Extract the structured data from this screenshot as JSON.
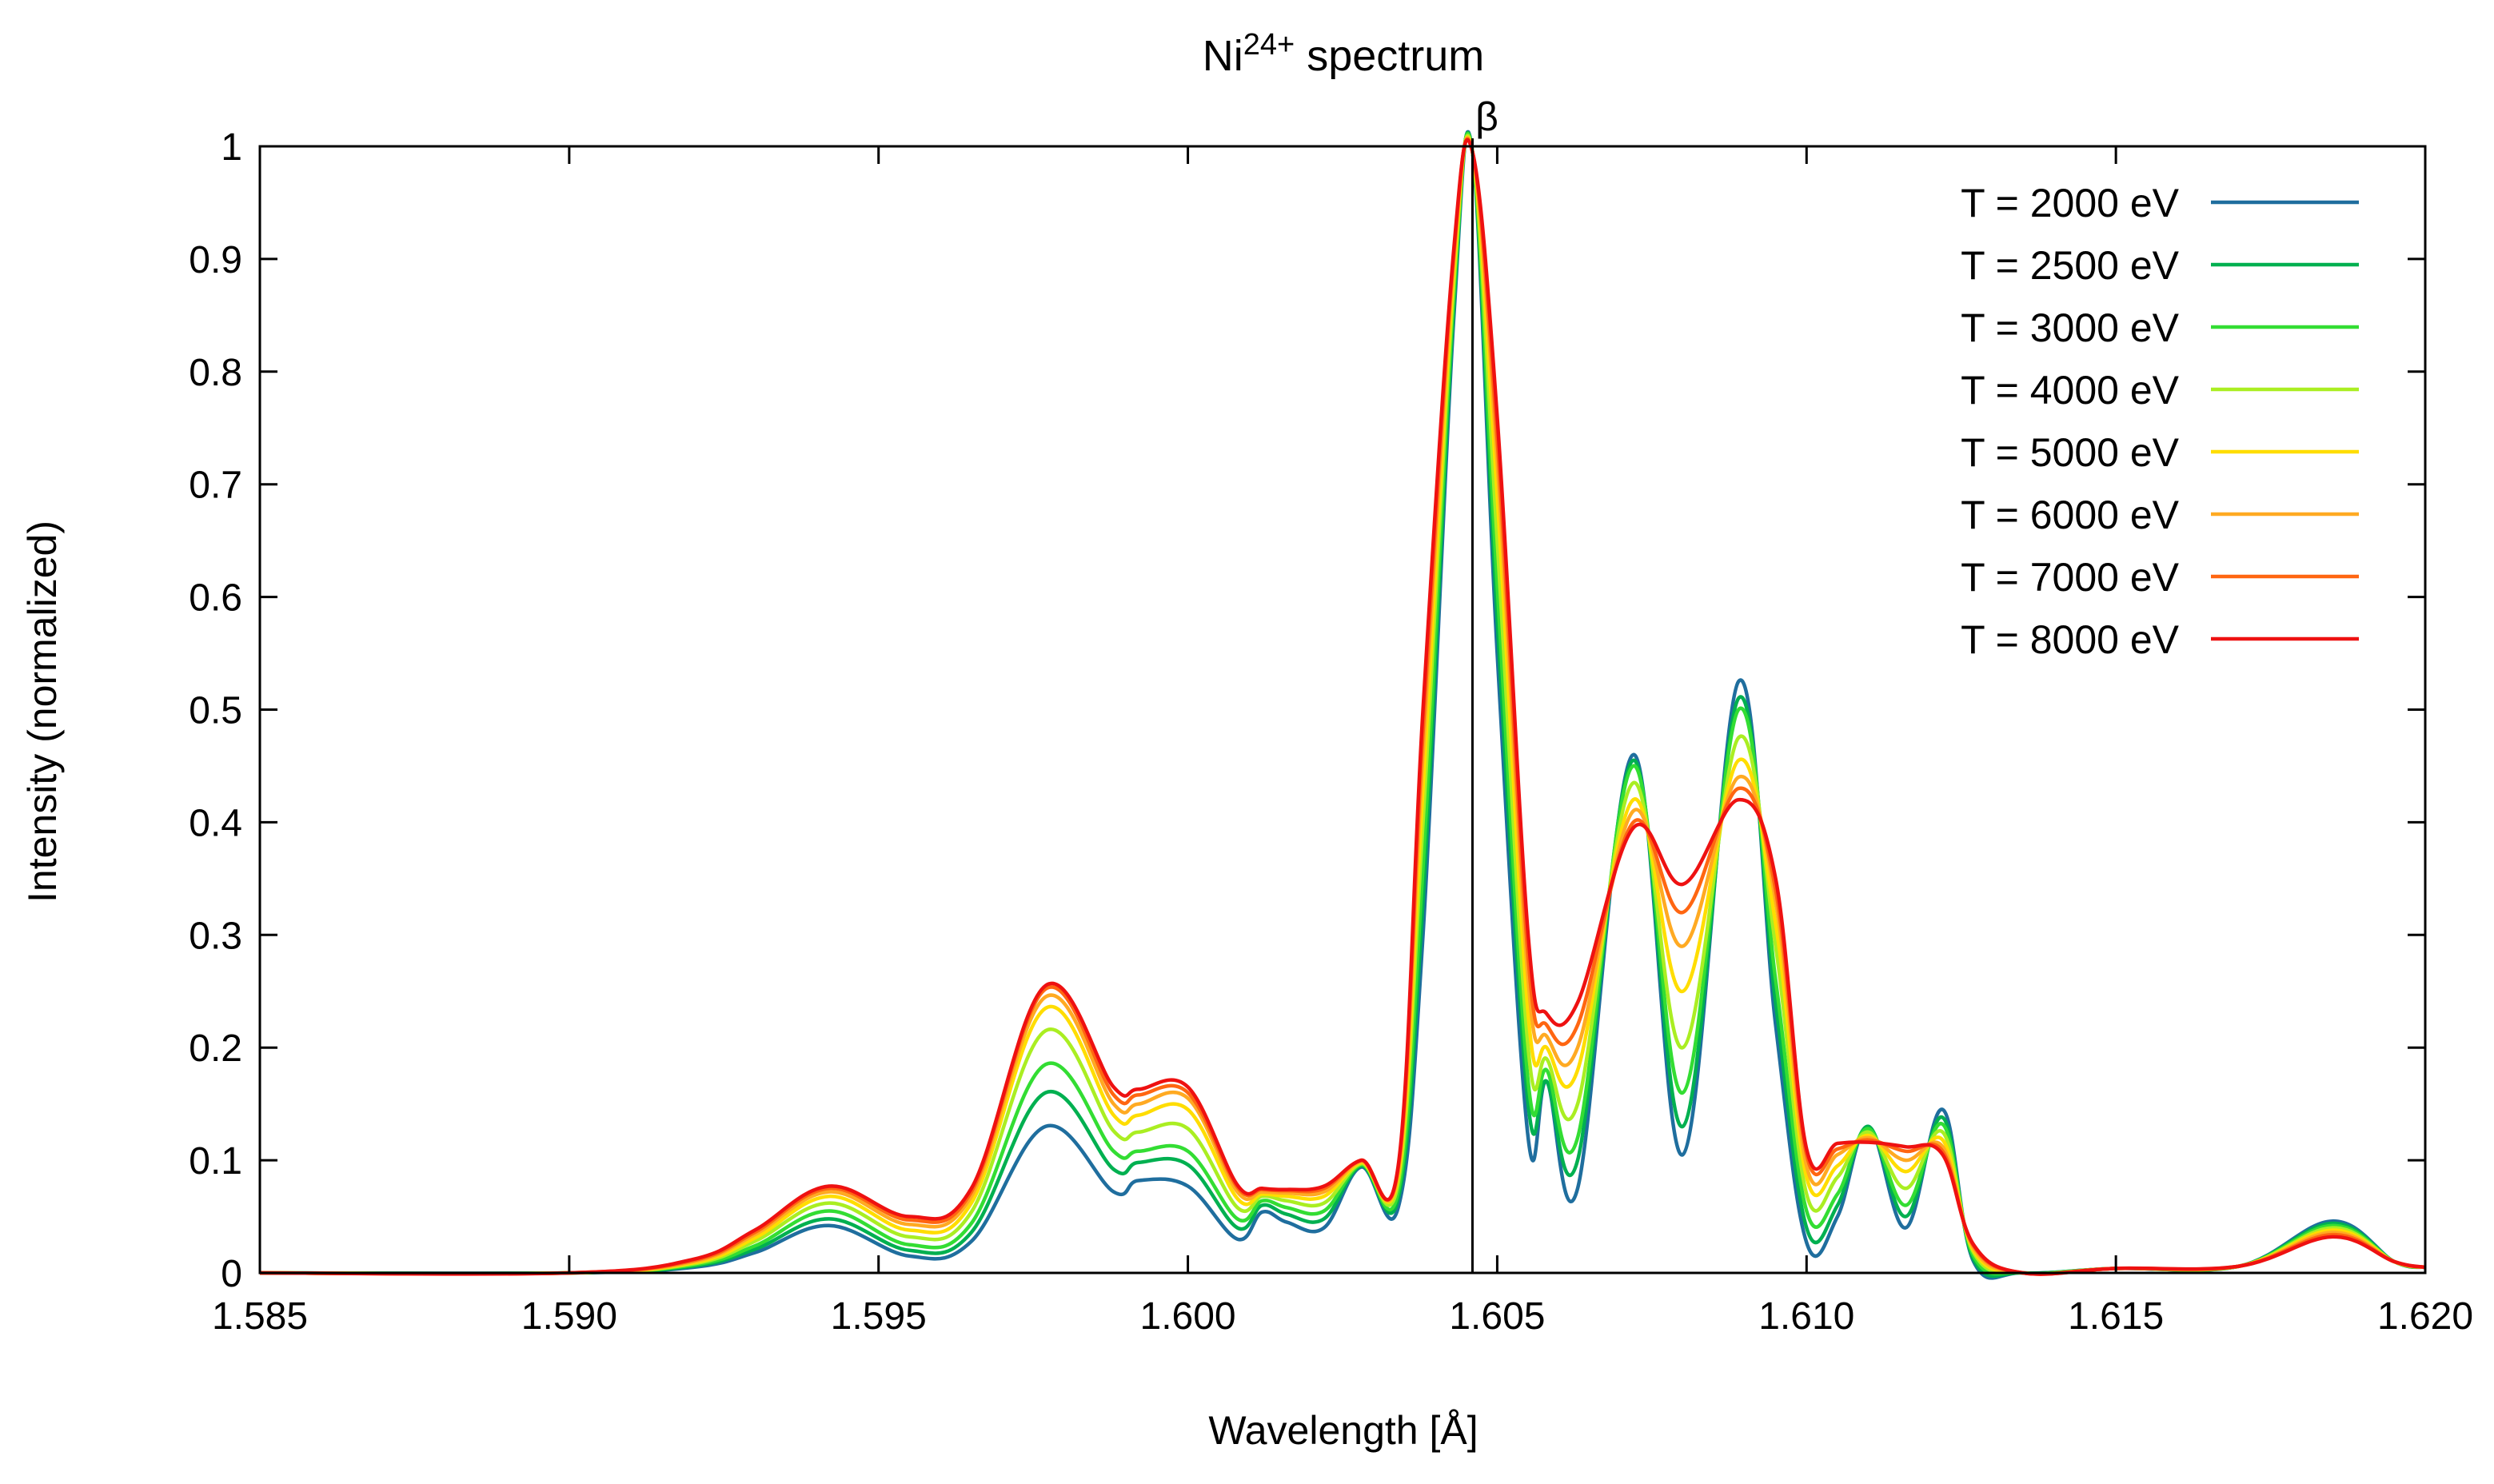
{
  "chart_data": {
    "type": "line",
    "title": {
      "prefix": "Ni",
      "superscript": "24+",
      "suffix": " spectrum"
    },
    "xlabel": "Wavelength [Å]",
    "ylabel": "Intensity (normalized)",
    "xlim": [
      1.585,
      1.62
    ],
    "ylim": [
      0,
      1
    ],
    "xticks": [
      1.585,
      1.59,
      1.595,
      1.6,
      1.605,
      1.61,
      1.615,
      1.62
    ],
    "xtick_labels": [
      "1.585",
      "1.590",
      "1.595",
      "1.600",
      "1.605",
      "1.610",
      "1.615",
      "1.620"
    ],
    "yticks": [
      0,
      0.1,
      0.2,
      0.3,
      0.4,
      0.5,
      0.6,
      0.7,
      0.8,
      0.9,
      1
    ],
    "ytick_labels": [
      "0",
      "0.1",
      "0.2",
      "0.3",
      "0.4",
      "0.5",
      "0.6",
      "0.7",
      "0.8",
      "0.9",
      "1"
    ],
    "grid": false,
    "legend_position": "top-right",
    "annotation": {
      "label": "β",
      "x": 1.6046
    },
    "series": [
      {
        "name": "T = 2000 eV",
        "color": "#1f6e9e",
        "x": [
          1.585,
          1.59,
          1.592,
          1.593,
          1.5942,
          1.5955,
          1.5965,
          1.5977,
          1.5988,
          1.5992,
          1.6,
          1.6008,
          1.6012,
          1.6016,
          1.6022,
          1.6028,
          1.6034,
          1.6038,
          1.6043,
          1.6046,
          1.605,
          1.6055,
          1.6058,
          1.6063,
          1.6072,
          1.608,
          1.6089,
          1.6095,
          1.61,
          1.6105,
          1.611,
          1.6116,
          1.6122,
          1.6127,
          1.6135,
          1.615,
          1.617,
          1.6185,
          1.6195,
          1.62
        ],
        "y": [
          0,
          0,
          0.005,
          0.018,
          0.042,
          0.015,
          0.028,
          0.13,
          0.072,
          0.082,
          0.077,
          0.03,
          0.054,
          0.045,
          0.04,
          0.094,
          0.058,
          0.3,
          0.85,
          0.995,
          0.55,
          0.12,
          0.17,
          0.075,
          0.46,
          0.105,
          0.525,
          0.22,
          0.027,
          0.05,
          0.13,
          0.04,
          0.145,
          0.01,
          0.0,
          0.004,
          0.006,
          0.046,
          0.01,
          0.005
        ]
      },
      {
        "name": "T = 2500 eV",
        "color": "#00b050",
        "x": [
          1.585,
          1.59,
          1.592,
          1.593,
          1.5942,
          1.5955,
          1.5965,
          1.5977,
          1.5988,
          1.5992,
          1.6,
          1.6008,
          1.6012,
          1.6016,
          1.6022,
          1.6028,
          1.6034,
          1.6038,
          1.6043,
          1.6046,
          1.605,
          1.6055,
          1.6058,
          1.6063,
          1.6072,
          1.608,
          1.6089,
          1.6095,
          1.61,
          1.6105,
          1.611,
          1.6116,
          1.6122,
          1.6127,
          1.6135,
          1.615,
          1.617,
          1.6185,
          1.6195,
          1.62
        ],
        "y": [
          0,
          0,
          0.006,
          0.021,
          0.048,
          0.02,
          0.036,
          0.16,
          0.092,
          0.098,
          0.096,
          0.04,
          0.06,
          0.052,
          0.048,
          0.095,
          0.066,
          0.33,
          0.86,
          0.995,
          0.58,
          0.15,
          0.17,
          0.1,
          0.455,
          0.13,
          0.51,
          0.24,
          0.04,
          0.06,
          0.13,
          0.05,
          0.138,
          0.012,
          0.0,
          0.004,
          0.006,
          0.044,
          0.01,
          0.005
        ]
      },
      {
        "name": "T = 3000 eV",
        "color": "#33dd33",
        "x": [
          1.585,
          1.59,
          1.592,
          1.593,
          1.5942,
          1.5955,
          1.5965,
          1.5977,
          1.5988,
          1.5992,
          1.6,
          1.6008,
          1.6012,
          1.6016,
          1.6022,
          1.6028,
          1.6034,
          1.6038,
          1.6043,
          1.6046,
          1.605,
          1.6055,
          1.6058,
          1.6063,
          1.6072,
          1.608,
          1.6089,
          1.6095,
          1.61,
          1.6105,
          1.611,
          1.6116,
          1.6122,
          1.6127,
          1.6135,
          1.615,
          1.617,
          1.6185,
          1.6195,
          1.62
        ],
        "y": [
          0,
          0,
          0.007,
          0.024,
          0.055,
          0.025,
          0.044,
          0.185,
          0.108,
          0.108,
          0.108,
          0.048,
          0.064,
          0.058,
          0.055,
          0.096,
          0.072,
          0.36,
          0.87,
          0.995,
          0.61,
          0.17,
          0.18,
          0.12,
          0.45,
          0.16,
          0.5,
          0.26,
          0.055,
          0.07,
          0.128,
          0.06,
          0.132,
          0.015,
          0.0,
          0.004,
          0.006,
          0.042,
          0.01,
          0.005
        ]
      },
      {
        "name": "T = 4000 eV",
        "color": "#aaee22",
        "x": [
          1.585,
          1.59,
          1.592,
          1.593,
          1.5942,
          1.5955,
          1.5965,
          1.5977,
          1.5988,
          1.5992,
          1.6,
          1.6008,
          1.6012,
          1.6016,
          1.6022,
          1.6028,
          1.6034,
          1.6038,
          1.6043,
          1.6046,
          1.605,
          1.6055,
          1.6058,
          1.6063,
          1.6072,
          1.608,
          1.6089,
          1.6095,
          1.61,
          1.6105,
          1.611,
          1.6116,
          1.6122,
          1.6127,
          1.6135,
          1.615,
          1.617,
          1.6185,
          1.6195,
          1.62
        ],
        "y": [
          0,
          0,
          0.008,
          0.028,
          0.062,
          0.032,
          0.054,
          0.215,
          0.126,
          0.125,
          0.128,
          0.058,
          0.068,
          0.064,
          0.062,
          0.097,
          0.08,
          0.4,
          0.88,
          0.995,
          0.65,
          0.2,
          0.19,
          0.15,
          0.435,
          0.2,
          0.475,
          0.29,
          0.07,
          0.085,
          0.125,
          0.075,
          0.125,
          0.018,
          0.0,
          0.004,
          0.006,
          0.04,
          0.01,
          0.005
        ]
      },
      {
        "name": "T = 5000 eV",
        "color": "#ffdd00",
        "x": [
          1.585,
          1.59,
          1.592,
          1.593,
          1.5942,
          1.5955,
          1.5965,
          1.5977,
          1.5988,
          1.5992,
          1.6,
          1.6008,
          1.6012,
          1.6016,
          1.6022,
          1.6028,
          1.6034,
          1.6038,
          1.6043,
          1.6046,
          1.605,
          1.6055,
          1.6058,
          1.6063,
          1.6072,
          1.608,
          1.6089,
          1.6095,
          1.61,
          1.6105,
          1.611,
          1.6116,
          1.6122,
          1.6127,
          1.6135,
          1.615,
          1.617,
          1.6185,
          1.6195,
          1.62
        ],
        "y": [
          0,
          0,
          0.009,
          0.031,
          0.068,
          0.038,
          0.062,
          0.235,
          0.14,
          0.14,
          0.145,
          0.066,
          0.07,
          0.068,
          0.068,
          0.098,
          0.086,
          0.43,
          0.89,
          0.995,
          0.69,
          0.23,
          0.2,
          0.18,
          0.42,
          0.25,
          0.455,
          0.31,
          0.085,
          0.095,
          0.122,
          0.09,
          0.118,
          0.02,
          0.0,
          0.004,
          0.006,
          0.038,
          0.01,
          0.005
        ]
      },
      {
        "name": "T = 6000 eV",
        "color": "#ffaa22",
        "x": [
          1.585,
          1.59,
          1.592,
          1.593,
          1.5942,
          1.5955,
          1.5965,
          1.5977,
          1.5988,
          1.5992,
          1.6,
          1.6008,
          1.6012,
          1.6016,
          1.6022,
          1.6028,
          1.6034,
          1.6038,
          1.6043,
          1.6046,
          1.605,
          1.6055,
          1.6058,
          1.6063,
          1.6072,
          1.608,
          1.6089,
          1.6095,
          1.61,
          1.6105,
          1.611,
          1.6116,
          1.6122,
          1.6127,
          1.6135,
          1.615,
          1.617,
          1.6185,
          1.6195,
          1.62
        ],
        "y": [
          0,
          0,
          0.01,
          0.034,
          0.072,
          0.043,
          0.068,
          0.245,
          0.15,
          0.15,
          0.155,
          0.072,
          0.072,
          0.071,
          0.072,
          0.099,
          0.09,
          0.46,
          0.9,
          0.995,
          0.72,
          0.26,
          0.21,
          0.2,
          0.41,
          0.29,
          0.44,
          0.33,
          0.095,
          0.105,
          0.12,
          0.1,
          0.112,
          0.022,
          0.0,
          0.004,
          0.006,
          0.036,
          0.01,
          0.005
        ]
      },
      {
        "name": "T = 7000 eV",
        "color": "#ff6611",
        "x": [
          1.585,
          1.59,
          1.592,
          1.593,
          1.5942,
          1.5955,
          1.5965,
          1.5977,
          1.5988,
          1.5992,
          1.6,
          1.6008,
          1.6012,
          1.6016,
          1.6022,
          1.6028,
          1.6034,
          1.6038,
          1.6043,
          1.6046,
          1.605,
          1.6055,
          1.6058,
          1.6063,
          1.6072,
          1.608,
          1.6089,
          1.6095,
          1.61,
          1.6105,
          1.611,
          1.6116,
          1.6122,
          1.6127,
          1.6135,
          1.615,
          1.617,
          1.6185,
          1.6195,
          1.62
        ],
        "y": [
          0,
          0,
          0.011,
          0.036,
          0.075,
          0.047,
          0.072,
          0.252,
          0.158,
          0.158,
          0.16,
          0.076,
          0.074,
          0.073,
          0.075,
          0.1,
          0.093,
          0.48,
          0.905,
          0.995,
          0.74,
          0.28,
          0.22,
          0.22,
          0.4,
          0.32,
          0.43,
          0.34,
          0.105,
          0.11,
          0.118,
          0.108,
          0.108,
          0.024,
          0.0,
          0.004,
          0.006,
          0.034,
          0.01,
          0.005
        ]
      },
      {
        "name": "T = 8000 eV",
        "color": "#ee1111",
        "x": [
          1.585,
          1.59,
          1.592,
          1.593,
          1.5942,
          1.5955,
          1.5965,
          1.5977,
          1.5988,
          1.5992,
          1.6,
          1.6008,
          1.6012,
          1.6016,
          1.6022,
          1.6028,
          1.6034,
          1.6038,
          1.6043,
          1.6046,
          1.605,
          1.6055,
          1.6058,
          1.6063,
          1.6072,
          1.608,
          1.6089,
          1.6095,
          1.61,
          1.6105,
          1.611,
          1.6116,
          1.6122,
          1.6127,
          1.6135,
          1.615,
          1.617,
          1.6185,
          1.6195,
          1.62
        ],
        "y": [
          0,
          0,
          0.012,
          0.038,
          0.077,
          0.05,
          0.075,
          0.255,
          0.165,
          0.163,
          0.165,
          0.078,
          0.075,
          0.074,
          0.077,
          0.1,
          0.095,
          0.5,
          0.91,
          0.995,
          0.76,
          0.3,
          0.23,
          0.24,
          0.395,
          0.345,
          0.42,
          0.35,
          0.11,
          0.115,
          0.116,
          0.112,
          0.105,
          0.025,
          0.0,
          0.004,
          0.006,
          0.032,
          0.01,
          0.005
        ]
      }
    ]
  }
}
